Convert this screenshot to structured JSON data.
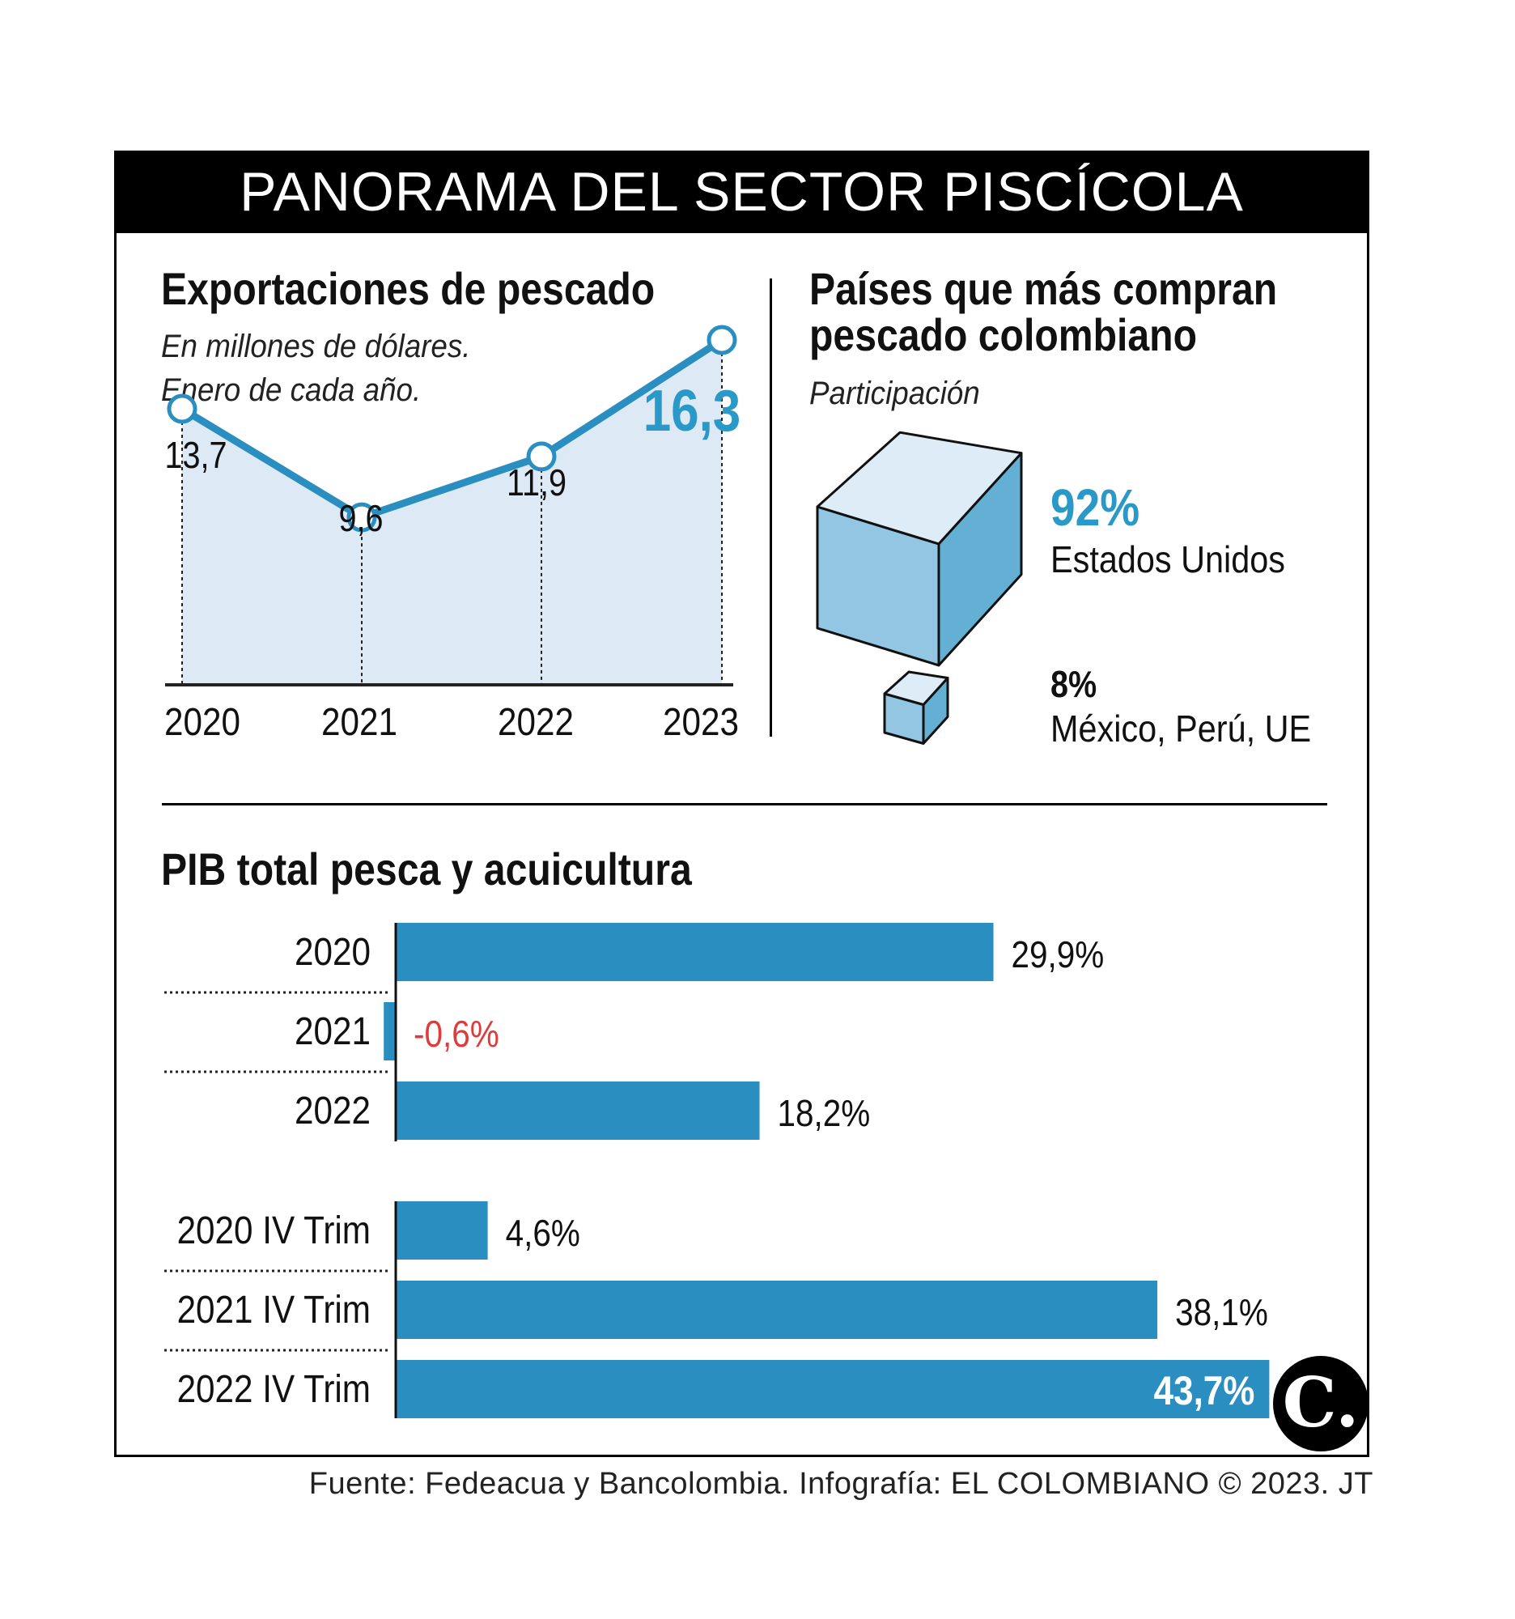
{
  "title": "PANORAMA DEL SECTOR PISCÍCOLA",
  "exports": {
    "title": "Exportaciones de pescado",
    "subtitle_line1": "En millones de dólares.",
    "subtitle_line2": "Enero de cada año."
  },
  "buyers": {
    "title_line1": "Países que más compran",
    "title_line2": "pescado colombiano",
    "subtitle": "Participación",
    "main_pct": "92%",
    "main_name": "Estados Unidos",
    "rest_pct": "8%",
    "rest_name": "México, Perú, UE"
  },
  "gdp": {
    "title": "PIB total pesca y acuicultura"
  },
  "source": "Fuente: Fedeacua y Bancolombia. Infografía: EL COLOMBIANO © 2023. JT",
  "logo": "C.",
  "colors": {
    "accent": "#2a99c8",
    "line": "#2a8fc0",
    "area": "#dde9f5",
    "negative": "#e03a3a",
    "cube_top": "#deecf7",
    "cube_front": "#92c6e2",
    "cube_side": "#64afd4"
  },
  "chart_data": [
    {
      "type": "area",
      "title": "Exportaciones de pescado",
      "categories": [
        "2020",
        "2021",
        "2022",
        "2023"
      ],
      "values": [
        13.7,
        9.6,
        11.9,
        16.3
      ],
      "value_labels": [
        "13,7",
        "9,6",
        "11,9",
        "16,3"
      ],
      "highlight_index": 3
    },
    {
      "type": "bar",
      "title": "Países que más compran pescado colombiano",
      "categories": [
        "Estados Unidos",
        "México, Perú, UE"
      ],
      "values": [
        92,
        8
      ],
      "unit": "%"
    },
    {
      "type": "bar",
      "title": "PIB total pesca y acuicultura",
      "orientation": "horizontal",
      "groups": [
        {
          "categories": [
            "2020",
            "2021",
            "2022"
          ],
          "values": [
            29.9,
            -0.6,
            18.2
          ],
          "value_labels": [
            "29,9%",
            "-0,6%",
            "18,2%"
          ]
        },
        {
          "categories": [
            "2020 IV Trim",
            "2021 IV Trim",
            "2022 IV Trim"
          ],
          "values": [
            4.6,
            38.1,
            43.7
          ],
          "value_labels": [
            "4,6%",
            "38,1%",
            "43,7%"
          ]
        }
      ],
      "highlight": "2022 IV Trim"
    }
  ]
}
